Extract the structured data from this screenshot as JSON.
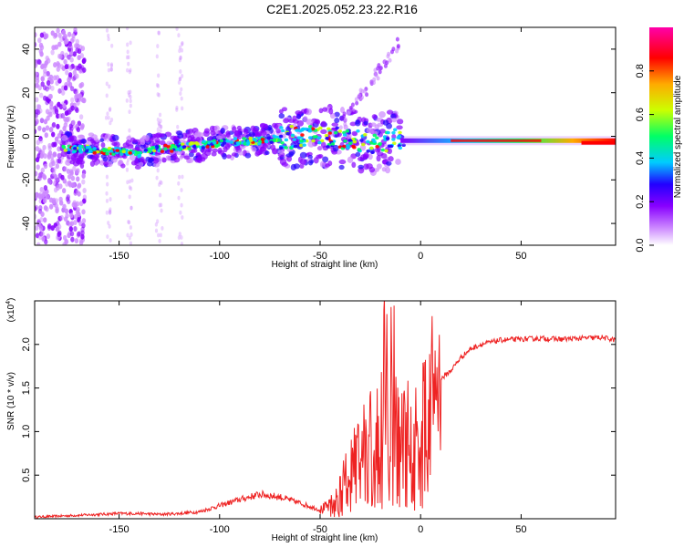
{
  "title": "C2E1.2025.052.23.22.R16",
  "colors": {
    "signal": "#ee2222",
    "frame": "#000000",
    "colormap": [
      "#ffffff",
      "#cc88ff",
      "#8800ff",
      "#2200ff",
      "#00ccff",
      "#00ff66",
      "#ccff00",
      "#ffaa00",
      "#ff0000",
      "#ff00aa"
    ]
  },
  "chart_data": [
    {
      "type": "heatmap",
      "xlabel": "Height of straight line (km)",
      "ylabel": "Frequency (Hz)",
      "xlim": [
        -192,
        97
      ],
      "ylim": [
        -50,
        50
      ],
      "xticks": [
        -150,
        -100,
        -50,
        0,
        50
      ],
      "yticks": [
        -40,
        -20,
        0,
        20,
        40
      ],
      "colorbar": {
        "label": "Normalized spectral amplitude",
        "range": [
          0,
          1
        ],
        "ticks": [
          "0.0",
          "0.2",
          "0.4",
          "0.6",
          "0.8"
        ]
      },
      "ridge": {
        "description_points_x": [
          -175,
          -165,
          -150,
          -140,
          -130,
          -120,
          -100,
          -80,
          -60,
          -45,
          -30,
          -20,
          -10,
          0,
          20,
          40,
          60,
          80,
          95
        ],
        "description_points_y": [
          -6,
          -6,
          -7,
          -8,
          -6,
          -5,
          -3,
          -2,
          0,
          0,
          -2,
          -3,
          -1,
          -1,
          -2,
          -2,
          -2,
          -2,
          -3
        ]
      }
    },
    {
      "type": "line",
      "xlabel": "Height of straight line (km)",
      "ylabel": "SNR (10 * v/v)",
      "multiplier": "(x10",
      "multiplier_exp": "4",
      "multiplier_close": ")",
      "xlim": [
        -192,
        97
      ],
      "ylim": [
        0,
        2.5
      ],
      "xticks": [
        -150,
        -100,
        -50,
        0,
        50
      ],
      "yticks": [
        "0.5",
        "1.0",
        "1.5",
        "2.0"
      ],
      "series": [
        {
          "x": [
            -192,
            -180,
            -170,
            -160,
            -150,
            -140,
            -130,
            -120,
            -110,
            -100,
            -90,
            -80,
            -70,
            -60,
            -50,
            -45,
            -40,
            -35,
            -30,
            -25,
            -20,
            -15,
            -10,
            -5,
            0,
            5,
            10,
            15,
            20,
            25,
            30,
            40,
            50,
            60,
            70,
            80,
            90,
            97
          ],
          "y": [
            0.02,
            0.03,
            0.04,
            0.05,
            0.06,
            0.06,
            0.05,
            0.06,
            0.08,
            0.15,
            0.22,
            0.28,
            0.25,
            0.18,
            0.1,
            0.15,
            0.4,
            0.6,
            0.8,
            1.0,
            1.2,
            1.3,
            1.1,
            1.0,
            1.2,
            1.5,
            1.6,
            1.7,
            1.85,
            1.95,
            2.0,
            2.05,
            2.06,
            2.07,
            2.06,
            2.07,
            2.08,
            2.05
          ]
        }
      ]
    }
  ]
}
